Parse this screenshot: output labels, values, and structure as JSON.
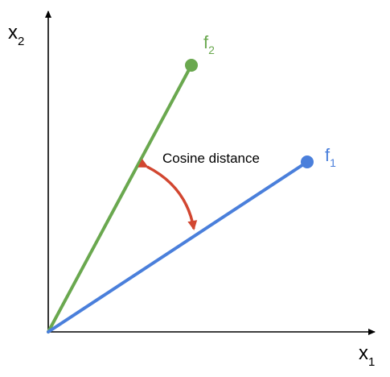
{
  "axes": {
    "x_label": "x",
    "x_subscript": "1",
    "y_label": "x",
    "y_subscript": "2"
  },
  "vectors": [
    {
      "label": "f",
      "subscript": "1",
      "color": "#4a7fdb"
    },
    {
      "label": "f",
      "subscript": "2",
      "color": "#6aa84f"
    }
  ],
  "annotation": {
    "text": "Cosine distance",
    "color": "#d24630"
  },
  "colors": {
    "axis": "#000000",
    "background": "#ffffff"
  }
}
